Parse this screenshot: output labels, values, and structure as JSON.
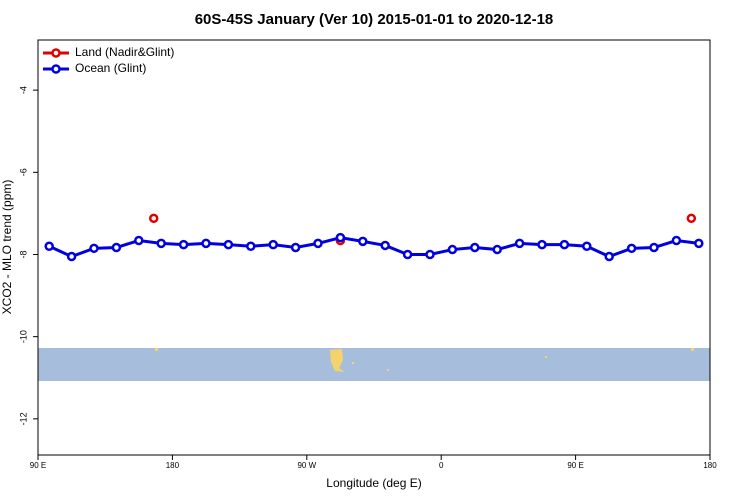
{
  "chart_data": {
    "type": "line",
    "title": "60S-45S January (Ver 10)   2015-01-01 to 2020-12-18",
    "x_label": "Longitude (deg E)",
    "y_label": "XCO2 - MLO trend (ppm)",
    "xlim": [
      90,
      540
    ],
    "xticks": [
      {
        "value": 90,
        "label": "90 E"
      },
      {
        "value": 180,
        "label": "180"
      },
      {
        "value": 270,
        "label": "90 W"
      },
      {
        "value": 360,
        "label": "0"
      },
      {
        "value": 450,
        "label": "90 E"
      },
      {
        "value": 540,
        "label": "180"
      }
    ],
    "ylim": [
      -12.88,
      -2.78
    ],
    "yticks": [
      -4,
      -6,
      -8,
      -10,
      -12
    ],
    "legend": "top-left",
    "series": [
      {
        "name": "Land (Nadir&Glint)",
        "color": "#e00000",
        "x": [
          167.5,
          292.5,
          527.5
        ],
        "values": [
          -7.12,
          -7.66,
          -7.12
        ]
      },
      {
        "name": "Ocean (Glint)",
        "color": "#0000e0",
        "x": [
          97.5,
          112.5,
          127.5,
          142.5,
          157.5,
          172.5,
          187.5,
          202.5,
          217.5,
          232.5,
          247.5,
          262.5,
          277.5,
          292.5,
          307.5,
          322.5,
          337.5,
          352.5,
          367.5,
          382.5,
          397.5,
          412.5,
          427.5,
          442.5,
          457.5,
          472.5,
          487.5,
          502.5,
          517.5,
          532.5
        ],
        "values": [
          -7.8,
          -8.05,
          -7.85,
          -7.83,
          -7.66,
          -7.73,
          -7.76,
          -7.73,
          -7.76,
          -7.8,
          -7.76,
          -7.83,
          -7.73,
          -7.59,
          -7.68,
          -7.78,
          -8.0,
          -8.0,
          -7.88,
          -7.83,
          -7.88,
          -7.73,
          -7.76,
          -7.76,
          -7.8,
          -8.05,
          -7.85,
          -7.83,
          -7.66,
          -7.73
        ]
      }
    ]
  }
}
